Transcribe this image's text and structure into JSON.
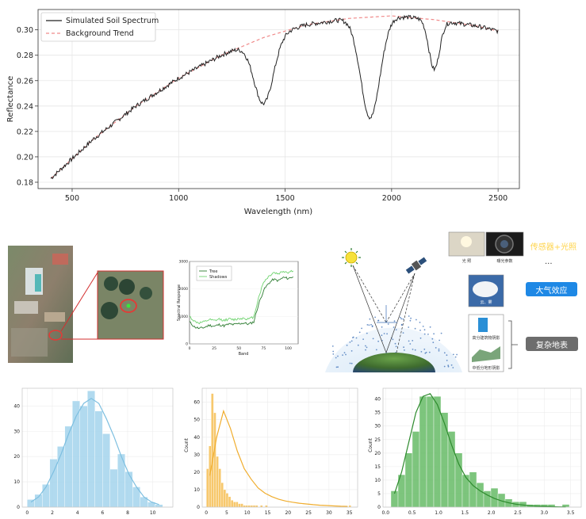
{
  "chart_data": [
    {
      "type": "line",
      "xlabel": "Wavelength (nm)",
      "ylabel": "Reflectance",
      "xlim": [
        340,
        2600
      ],
      "ylim": [
        0.175,
        0.316
      ],
      "xticks": [
        500,
        1000,
        1500,
        2000,
        2500
      ],
      "yticks": [
        0.18,
        0.2,
        0.22,
        0.24,
        0.26,
        0.28,
        0.3
      ],
      "ytick_labels": [
        "0.18",
        "0.20",
        "0.22",
        "0.24",
        "0.26",
        "0.28",
        "0.30"
      ],
      "legend_position": "top-left",
      "grid": true,
      "series": [
        {
          "name": "Simulated Soil Spectrum",
          "color": "#222222",
          "style": "solid"
        },
        {
          "name": "Background Trend",
          "color": "#f08a8a",
          "style": "dashed"
        }
      ],
      "background_trend": {
        "x": [
          400,
          600,
          800,
          1000,
          1200,
          1400,
          1600,
          1800,
          2000,
          2200,
          2400,
          2500
        ],
        "y": [
          0.183,
          0.214,
          0.24,
          0.262,
          0.28,
          0.294,
          0.304,
          0.309,
          0.311,
          0.308,
          0.303,
          0.299
        ]
      },
      "absorption_features": [
        {
          "center": 1400,
          "depth": 0.052,
          "width": 45
        },
        {
          "center": 1900,
          "depth": 0.079,
          "width": 45
        },
        {
          "center": 2200,
          "depth": 0.039,
          "width": 25
        }
      ]
    },
    {
      "type": "line",
      "xlabel": "Band",
      "ylabel": "Spectral Response",
      "xlim": [
        0,
        110
      ],
      "ylim": [
        0,
        3000
      ],
      "xticks": [
        0,
        25,
        50,
        75,
        100
      ],
      "yticks": [
        0,
        1000,
        2000,
        3000
      ],
      "ytick_labels": [
        "0",
        "1000",
        "2000",
        "3000"
      ],
      "legend_position": "top-left",
      "series": [
        {
          "name": "Tree",
          "color": "#2e7d32",
          "x": [
            0,
            5,
            10,
            15,
            20,
            25,
            30,
            35,
            40,
            45,
            50,
            55,
            60,
            65,
            70,
            75,
            80,
            85,
            90,
            95,
            100,
            105
          ],
          "values": [
            800,
            620,
            560,
            600,
            680,
            640,
            700,
            660,
            720,
            700,
            740,
            760,
            720,
            800,
            1450,
            1950,
            2200,
            2350,
            2300,
            2420,
            2380,
            2450
          ]
        },
        {
          "name": "Shadows",
          "color": "#6fd36f",
          "x": [
            0,
            5,
            10,
            15,
            20,
            25,
            30,
            35,
            40,
            45,
            50,
            55,
            60,
            65,
            70,
            75,
            80,
            85,
            90,
            95,
            100,
            105
          ],
          "values": [
            1000,
            820,
            760,
            800,
            880,
            840,
            900,
            860,
            900,
            880,
            920,
            940,
            900,
            980,
            1700,
            2250,
            2450,
            2600,
            2550,
            2650,
            2600,
            2680
          ]
        }
      ]
    },
    {
      "type": "bar",
      "xlabel": "",
      "ylabel": "",
      "xticks": [
        0,
        2,
        4,
        6,
        8,
        10
      ],
      "yticks": [
        0,
        10,
        20,
        30,
        40
      ],
      "xlim": [
        -0.4,
        11.6
      ],
      "ylim": [
        0,
        47
      ],
      "color": "#a9d6ee",
      "bin_start": 0.0,
      "bin_width": 0.6,
      "values": [
        3,
        5,
        9,
        19,
        24,
        32,
        42,
        40,
        46,
        38,
        29,
        15,
        21,
        14,
        8,
        4,
        2,
        1
      ],
      "kde": [
        2,
        4,
        8,
        14,
        21,
        29,
        36,
        41,
        43,
        41,
        35,
        28,
        20,
        13,
        8,
        4,
        2,
        1
      ]
    },
    {
      "type": "bar",
      "xlabel": "",
      "ylabel": "Count",
      "xticks": [
        0,
        5,
        10,
        15,
        20,
        25,
        30,
        35
      ],
      "yticks": [
        0,
        10,
        20,
        30,
        40,
        50,
        60
      ],
      "xlim": [
        -1,
        37
      ],
      "ylim": [
        0,
        68
      ],
      "color": "#f7c35e",
      "bin_start": 0.0,
      "bin_width": 0.6,
      "values": [
        22,
        35,
        65,
        54,
        29,
        22,
        14,
        10,
        8,
        6,
        4,
        3,
        3,
        2,
        2,
        1,
        1,
        1,
        1,
        1,
        1,
        0,
        1,
        0,
        1,
        0,
        0,
        0,
        0,
        0,
        0,
        0,
        0,
        0,
        0,
        0,
        0,
        0,
        0,
        0,
        0,
        0,
        0,
        0,
        0,
        0,
        0,
        0,
        0,
        0,
        0,
        0,
        0,
        0,
        0,
        0,
        0,
        0,
        1
      ],
      "kde": [
        18,
        40,
        55,
        45,
        32,
        22,
        16,
        11,
        8,
        6,
        4.5,
        3.5,
        2.8,
        2.2,
        1.8,
        1.4,
        1.1,
        0.9,
        0.7,
        0.5,
        0.4
      ]
    },
    {
      "type": "bar",
      "xlabel": "",
      "ylabel": "Count",
      "xticks": [
        0,
        0.5,
        1.0,
        1.5,
        2.0,
        2.5,
        3.0,
        3.5
      ],
      "xtick_labels": [
        "0.0",
        "0.5",
        "1.0",
        "1.5",
        "2.0",
        "2.5",
        "3.0",
        "3.5"
      ],
      "yticks": [
        0,
        5,
        10,
        15,
        20,
        25,
        30,
        35,
        40
      ],
      "xlim": [
        -0.05,
        3.7
      ],
      "ylim": [
        0,
        44
      ],
      "color": "#6fbf6f",
      "bin_start": 0.1,
      "bin_width": 0.135,
      "values": [
        6,
        12,
        20,
        28,
        41,
        41,
        41,
        35,
        28,
        20,
        12,
        13,
        9,
        6,
        7,
        5,
        3,
        2,
        2,
        1,
        1,
        1,
        1,
        0,
        1
      ],
      "kde": [
        5,
        13,
        24,
        35,
        41,
        42,
        38,
        31,
        23,
        16,
        11,
        8,
        6,
        4.5,
        3.2,
        2.3,
        1.6,
        1.1,
        0.8,
        0.5,
        0.35,
        0.25,
        0.15,
        0.1,
        0.05
      ]
    }
  ],
  "illustration": {
    "label_sensor": "传感器+光照",
    "label_atmosphere": "大气效应",
    "label_surface": "复杂地表",
    "ellipsis": "...",
    "cap_light": "光  照",
    "cap_exposure": "曝光参数",
    "cap_cloud": "云、雾",
    "cap_building": "高分建筑物阴影",
    "cap_terrain": "中低分地形阴影",
    "color_sensor": "#1b2a4a",
    "color_atmosphere": "#1e88e5",
    "color_surface": "#6d6d6d"
  }
}
